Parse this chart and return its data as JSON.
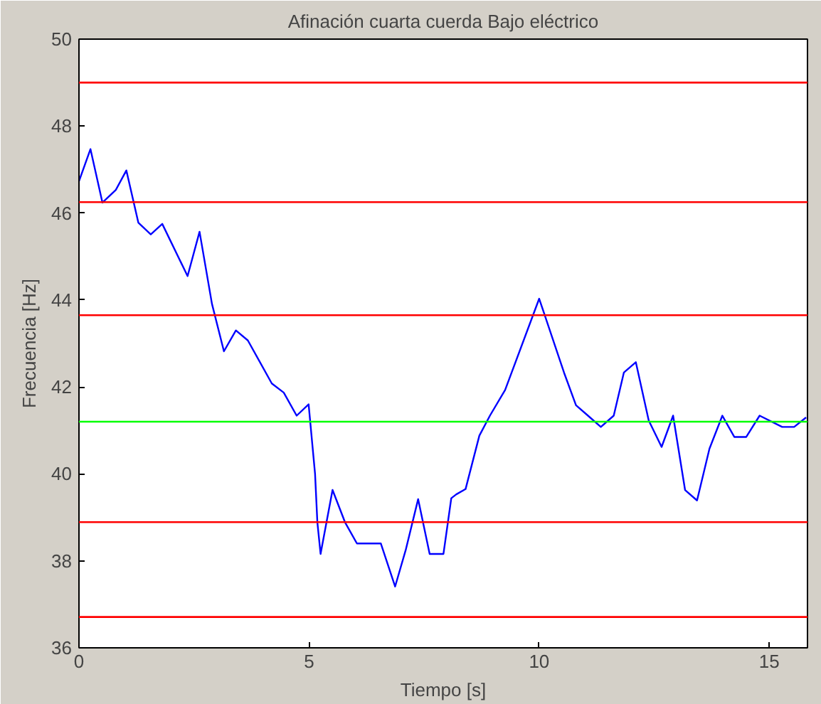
{
  "chart_data": {
    "type": "line",
    "title": "Afinación cuarta cuerda Bajo eléctrico",
    "xlabel": "Tiempo [s]",
    "ylabel": "Frecuencia [Hz]",
    "x": [
      0,
      0.25,
      0.51,
      0.8,
      1.03,
      1.29,
      1.56,
      1.81,
      2.36,
      2.62,
      2.89,
      3.15,
      3.41,
      3.67,
      4.19,
      4.45,
      4.73,
      4.99,
      5.13,
      5.18,
      5.25,
      5.51,
      5.78,
      6.04,
      6.56,
      6.87,
      7.1,
      7.37,
      7.62,
      7.92,
      8.09,
      8.2,
      8.4,
      8.7,
      8.93,
      9.26,
      10.0,
      10.28,
      10.54,
      10.8,
      11.06,
      11.34,
      11.62,
      11.84,
      12.1,
      12.38,
      12.66,
      12.91,
      13.17,
      13.43,
      13.7,
      13.98,
      14.24,
      14.5,
      14.79,
      15.28,
      15.54,
      15.8
    ],
    "series": [
      {
        "color": "#0000ff",
        "values": [
          46.73,
          47.47,
          46.24,
          46.53,
          46.98,
          45.78,
          45.51,
          45.75,
          44.55,
          45.57,
          43.91,
          42.82,
          43.3,
          43.07,
          42.08,
          41.87,
          41.34,
          41.6,
          40.0,
          38.89,
          38.16,
          39.63,
          38.89,
          38.4,
          38.4,
          37.41,
          38.25,
          39.42,
          38.16,
          38.16,
          39.44,
          39.53,
          39.65,
          40.88,
          41.34,
          41.93,
          44.03,
          43.15,
          42.33,
          41.58,
          41.34,
          41.08,
          41.34,
          42.33,
          42.57,
          41.23,
          40.62,
          41.34,
          39.63,
          39.39,
          40.58,
          41.34,
          40.85,
          40.85,
          41.34,
          41.08,
          41.08,
          41.3
        ]
      }
    ],
    "xlim": [
      0,
      15.83
    ],
    "ylim": [
      36,
      50
    ],
    "xticks": [
      0,
      5,
      10,
      15
    ],
    "yticks": [
      36,
      38,
      40,
      42,
      44,
      46,
      48,
      50
    ],
    "grid": false,
    "marker": "none",
    "line_style": "solid",
    "ref_lines": [
      {
        "axis": "y",
        "value": 49.0,
        "color": "#ff0000"
      },
      {
        "axis": "y",
        "value": 46.25,
        "color": "#ff0000"
      },
      {
        "axis": "y",
        "value": 43.65,
        "color": "#ff0000"
      },
      {
        "axis": "y",
        "value": 41.2,
        "color": "#00ff00"
      },
      {
        "axis": "y",
        "value": 38.89,
        "color": "#ff0000"
      },
      {
        "axis": "y",
        "value": 36.71,
        "color": "#ff0000"
      }
    ]
  }
}
